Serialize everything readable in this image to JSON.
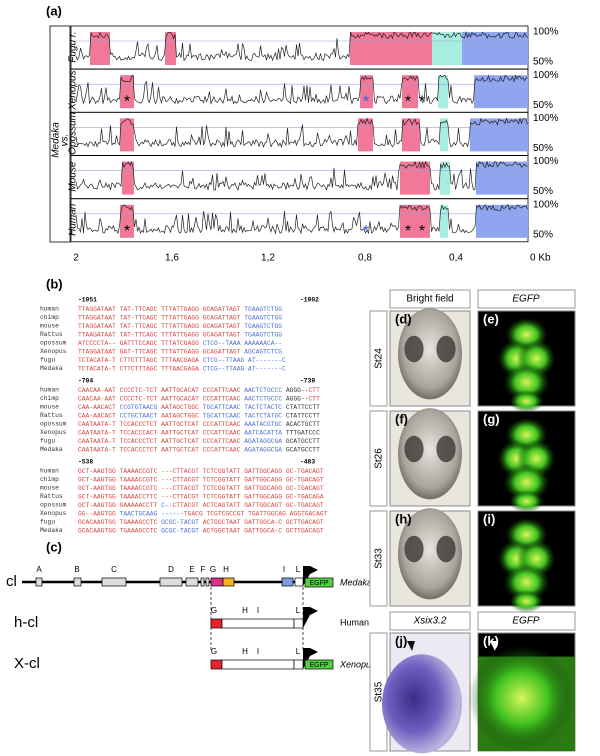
{
  "panel_a": {
    "label": "(a)",
    "rows": [
      "Fugu r.",
      "Xenopus",
      "Opossum",
      "Mouse",
      "Human"
    ],
    "side_label_1": "Medaka",
    "side_label_2": "vs.",
    "y_labels": [
      "100%",
      "50%"
    ],
    "x_labels": [
      "2",
      "1,6",
      "1,2",
      "0,8",
      "0,4",
      "0 Kb"
    ],
    "marker": "*"
  },
  "panel_b": {
    "label": "(b)",
    "palette": {
      "r": "#d9453f",
      "b": "#4a6fd0",
      "k": "#333333"
    },
    "blocks": [
      {
        "start": "-1951",
        "end": "-1902",
        "rows": [
          {
            "name": "human",
            "seq": [
              {
                "t": "TTAGGATAAT TAT-TTCAGC TTTATTGAGG GCAGATTAGT ",
                "c": "r"
              },
              {
                "t": "TGAAGTCTGG",
                "c": "b"
              }
            ]
          },
          {
            "name": "chimp",
            "seq": [
              {
                "t": "TTAGGATAAT TAT-TTCAGC TTTATTGAGG GCAGATTAGT ",
                "c": "r"
              },
              {
                "t": "TGAAGTCTGG",
                "c": "b"
              }
            ]
          },
          {
            "name": "mouse",
            "seq": [
              {
                "t": "TTAGGATAAT TAT-TTCAGC TTTATTGAGG GCAGATTAGT ",
                "c": "r"
              },
              {
                "t": "TGAAGTCTGG",
                "c": "b"
              }
            ]
          },
          {
            "name": "Rattus",
            "seq": [
              {
                "t": "TTAAGATAAT TAT-TTCAGC TTTATTGAGG GCAGATTAGT ",
                "c": "r"
              },
              {
                "t": "TGAAGTCTGG",
                "c": "b"
              }
            ]
          },
          {
            "name": "opossum",
            "seq": [
              {
                "t": "ATCCCCTA-- GATTTCCAGC TTTATCGAGG ",
                "c": "r"
              },
              {
                "t": "CTCG--TAAA AAAAAACA--",
                "c": "b"
              }
            ]
          },
          {
            "name": "Xenopus",
            "seq": [
              {
                "t": "TTAGGATAAT GAT-TTCAGC TTTATTGAGG GCAGATTAGT ",
                "c": "r"
              },
              {
                "t": "AGCAGTCTCG",
                "c": "b"
              }
            ]
          },
          {
            "name": "fugu",
            "seq": [
              {
                "t": "TCTACATA-T CTTCTTTAGC TTTAACGAGA ",
                "c": "r"
              },
              {
                "t": "CTCG--TTAAG AT-------C",
                "c": "b"
              }
            ]
          },
          {
            "name": "Medaka",
            "seq": [
              {
                "t": "TCTACATA-T CTTCTTTAGC TTTAACGAGA ",
                "c": "r"
              },
              {
                "t": "CTCG--TTAAG AT-------C",
                "c": "b"
              }
            ]
          }
        ]
      },
      {
        "start": "-794",
        "end": "-739",
        "rows": [
          {
            "name": "human",
            "seq": [
              {
                "t": "CAACAA-AAT CCCCTC-TCT AATTGCACAT CCCATTCAAC ",
                "c": "r"
              },
              {
                "t": "AACTCTGCCC ",
                "c": "b"
              },
              {
                "t": "AGGG--",
                "c": "k"
              },
              {
                "t": "CTT",
                "c": "r"
              }
            ]
          },
          {
            "name": "chimp",
            "seq": [
              {
                "t": "CAACAA-AAT CCCCTC-TCT AATTGCACAT CCCATTCAAC ",
                "c": "r"
              },
              {
                "t": "AACTCTGCCC ",
                "c": "b"
              },
              {
                "t": "AGGG--",
                "c": "k"
              },
              {
                "t": "CTT",
                "c": "r"
              }
            ]
          },
          {
            "name": "mouse",
            "seq": [
              {
                "t": "CAA-AACACT ",
                "c": "r"
              },
              {
                "t": "CCGTGTAACG ",
                "c": "b"
              },
              {
                "t": "AATAGCTGGC ",
                "c": "r"
              },
              {
                "t": "TGCATTCAAC TACTCTACTC ",
                "c": "b"
              },
              {
                "t": "CTATTCCTT",
                "c": "k"
              }
            ]
          },
          {
            "name": "Rattus",
            "seq": [
              {
                "t": "CAA-AACACT ",
                "c": "r"
              },
              {
                "t": "CCTGCTAACT ",
                "c": "b"
              },
              {
                "t": "AATAGCTGGC ",
                "c": "r"
              },
              {
                "t": "TGCATTCAAC TACTCTATGC ",
                "c": "b"
              },
              {
                "t": "CTATTCCTT",
                "c": "k"
              }
            ]
          },
          {
            "name": "opossum",
            "seq": [
              {
                "t": "CAATAATA-T TCCACCCTCT AATTGCTCAT CCCATTCAAC ",
                "c": "r"
              },
              {
                "t": "AAATACGTGC ",
                "c": "b"
              },
              {
                "t": "ACACTGCTT",
                "c": "k"
              }
            ]
          },
          {
            "name": "Xenopus",
            "seq": [
              {
                "t": "CAATAATA-T TCCACCCACT AATTGCTCAT CCCATTCAAC ",
                "c": "r"
              },
              {
                "t": "AATCACATTA ",
                "c": "b"
              },
              {
                "t": "TTTGATCCC",
                "c": "k"
              }
            ]
          },
          {
            "name": "fugu",
            "seq": [
              {
                "t": "CAATAATA-T TCCACCCTCT AATTGCTCAT CCCATTCAAC ",
                "c": "r"
              },
              {
                "t": "AGATAGGCGA ",
                "c": "b"
              },
              {
                "t": "GCATGCCTT",
                "c": "k"
              }
            ]
          },
          {
            "name": "Medaka",
            "seq": [
              {
                "t": "CAATAATA-T TCCACCCTCT AATTGCTCAT CCCATTCAAC ",
                "c": "r"
              },
              {
                "t": "AGATAGGCGA ",
                "c": "b"
              },
              {
                "t": "GCATGCCTT",
                "c": "k"
              }
            ]
          }
        ]
      },
      {
        "start": "-538",
        "end": "-483",
        "rows": [
          {
            "name": "human",
            "seq": [
              {
                "t": "GCT-AAGTGG TAAAACCGTC ---CTTACGT TCTCGGTATT GATTGGCAGG GC-TGACAGT",
                "c": "r"
              }
            ]
          },
          {
            "name": "chimp",
            "seq": [
              {
                "t": "GCT-AAGTGG TAAAACCGTC ---CTTACGT TCTCGGTATT GATTGGCAGG GC-TGACAGT",
                "c": "r"
              }
            ]
          },
          {
            "name": "mouse",
            "seq": [
              {
                "t": "GCT-AAGTGG TAAAACCGTC ---CTTACGT TCTCGGTATT GATTGGCAGG GC-TGACAGT",
                "c": "r"
              }
            ]
          },
          {
            "name": "Rattus",
            "seq": [
              {
                "t": "GCT-AAGTGG TAAAACCTTC ---CTTACGT TCTCGGTATT GATTGGCAGG GC-TGACAGA",
                "c": "r"
              }
            ]
          },
          {
            "name": "opossum",
            "seq": [
              {
                "t": "GCT-AAGTGG GAAAAACCTT ",
                "c": "r"
              },
              {
                "t": "C--",
                "c": "b"
              },
              {
                "t": "CTTACGT ACTCAGTATT GATTGGCAGT GC-TGACAGT",
                "c": "r"
              }
            ]
          },
          {
            "name": "Xenopus",
            "seq": [
              {
                "t": "GG--AAGTGG ",
                "c": "r"
              },
              {
                "t": "TAACTGCAAG ------",
                "c": "b"
              },
              {
                "t": "TGACG TCGTCGCCGT TGATTGGCAG AGGTGACAGT",
                "c": "r"
              }
            ]
          },
          {
            "name": "fugu",
            "seq": [
              {
                "t": "GCACAAGTGG TGAAAGCCTC ",
                "c": "r"
              },
              {
                "t": "GCGC-TACGT ",
                "c": "b"
              },
              {
                "t": "ACTGGCTAAT GATTGGCA-C GCTTGACAGT",
                "c": "r"
              }
            ]
          },
          {
            "name": "Medaka",
            "seq": [
              {
                "t": "GCACAAGTGG TGAAAGCCTC ",
                "c": "r"
              },
              {
                "t": "GCGC-TACGT ",
                "c": "b"
              },
              {
                "t": "ACTGGCTAAT GATTGGCA-C GCTTGACAGT",
                "c": "r"
              }
            ]
          }
        ]
      }
    ]
  },
  "panel_c": {
    "label": "(c)",
    "constructs": [
      {
        "name": "cl",
        "species": "Medaka",
        "elements": [
          "A",
          "B",
          "C",
          "D",
          "E",
          "F",
          "G",
          "H",
          "I",
          "L"
        ],
        "reporter": "EGFP"
      },
      {
        "name": "h-cl",
        "species": "Human",
        "elements": [
          "G",
          "H",
          "I",
          "L"
        ]
      },
      {
        "name": "X-cl",
        "species": "Xenopus",
        "elements": [
          "G",
          "H",
          "I",
          "L"
        ],
        "reporter": "EGFP"
      }
    ]
  },
  "panel_images": {
    "columns": [
      "Bright field",
      "EGFP"
    ],
    "rows": [
      {
        "stage": "St24",
        "labels": [
          "(d)",
          "(e)"
        ]
      },
      {
        "stage": "St26",
        "labels": [
          "(f)",
          "(g)"
        ]
      },
      {
        "stage": "St33",
        "labels": [
          "(h)",
          "(i)"
        ]
      }
    ],
    "bottom_columns": [
      "Xsix3.2",
      "EGFP"
    ],
    "bottom": {
      "stage": "St35",
      "labels": [
        "(j)",
        "(k)"
      ]
    }
  }
}
